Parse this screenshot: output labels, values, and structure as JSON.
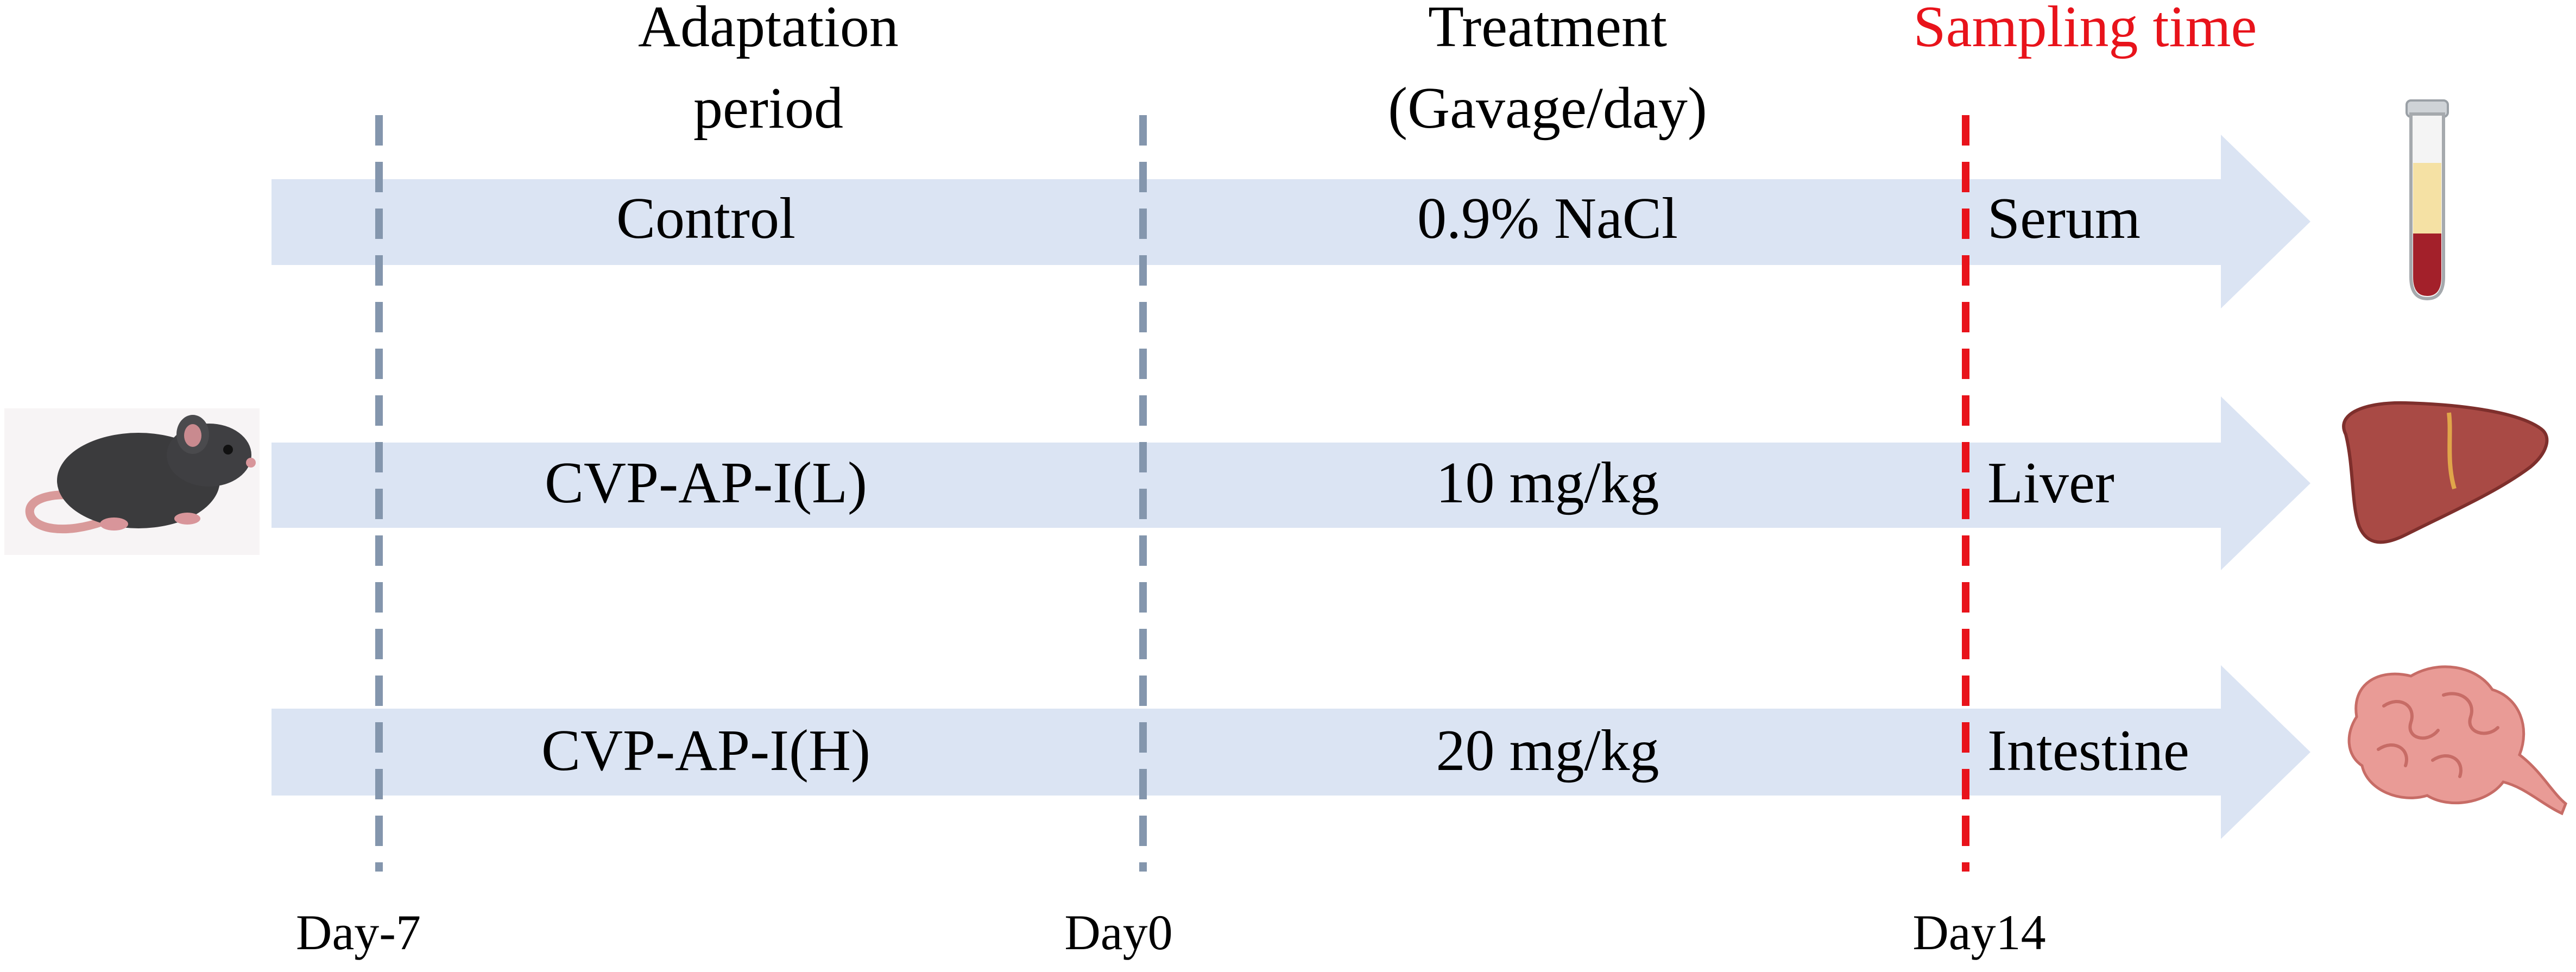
{
  "headers": {
    "adaptation": [
      "Adaptation",
      "period"
    ],
    "treatment": [
      "Treatment",
      "(Gavage/day)"
    ],
    "sampling": "Sampling time"
  },
  "groups": [
    {
      "name": "Control",
      "dose": "0.9% NaCl",
      "sample": "Serum"
    },
    {
      "name": "CVP-AP-I(L)",
      "dose": "10 mg/kg",
      "sample": "Liver"
    },
    {
      "name": "CVP-AP-I(H)",
      "dose": "20 mg/kg",
      "sample": "Intestine"
    }
  ],
  "days": [
    "Day-7",
    "Day0",
    "Day14"
  ],
  "colors": {
    "arrow": "#dbe4f3",
    "dashed_line": "#8496ad",
    "sampling_line": "#e8131b",
    "sampling_text": "#e8131b",
    "text": "#000000"
  },
  "icons": {
    "animal": "mouse-icon",
    "serum": "blood-tube-icon",
    "liver": "liver-icon",
    "intestine": "intestine-icon"
  }
}
